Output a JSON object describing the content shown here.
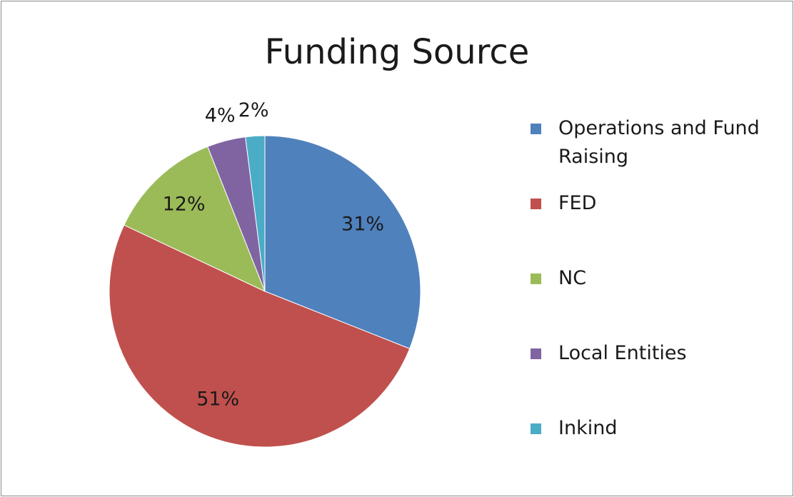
{
  "chart_data": {
    "type": "pie",
    "title": "Funding Source",
    "categories": [
      "Operations and Fund Raising",
      "FED",
      "NC",
      "Local Entities",
      "Inkind"
    ],
    "values": [
      31,
      51,
      12,
      4,
      2
    ],
    "value_labels": [
      "31%",
      "51%",
      "12%",
      "4%",
      "2%"
    ],
    "colors": [
      "#4f81bd",
      "#c0504d",
      "#9bbb59",
      "#8064a2",
      "#4bacc6"
    ],
    "legend": "right"
  }
}
